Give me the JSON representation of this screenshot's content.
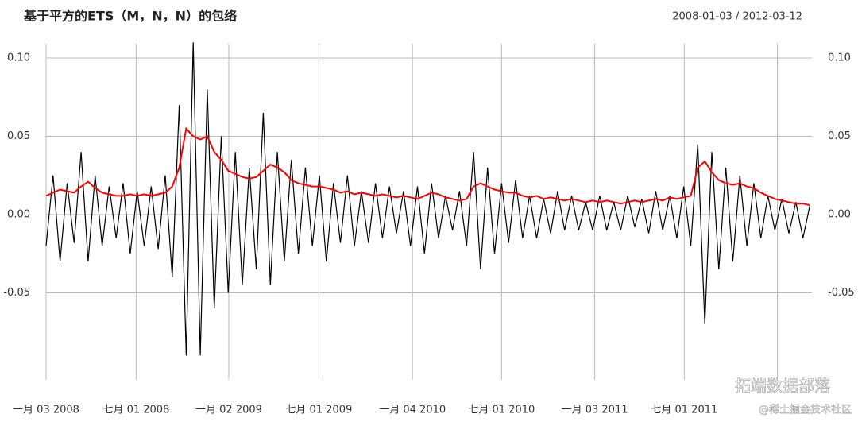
{
  "chart_data": {
    "type": "line",
    "title": "基于平方的ETS（M，N，N）的包络",
    "subtitle": "2008-01-03 / 2012-03-12",
    "x": [
      "2008-01-03",
      "2008-01-17",
      "2008-01-31",
      "2008-02-14",
      "2008-02-28",
      "2008-03-13",
      "2008-03-27",
      "2008-04-10",
      "2008-04-24",
      "2008-05-08",
      "2008-05-22",
      "2008-06-05",
      "2008-06-19",
      "2008-07-03",
      "2008-07-17",
      "2008-07-31",
      "2008-08-14",
      "2008-08-28",
      "2008-09-11",
      "2008-09-25",
      "2008-10-09",
      "2008-10-23",
      "2008-11-06",
      "2008-11-20",
      "2008-12-04",
      "2008-12-18",
      "2009-01-01",
      "2009-01-15",
      "2009-01-29",
      "2009-02-12",
      "2009-02-26",
      "2009-03-12",
      "2009-03-26",
      "2009-04-09",
      "2009-04-23",
      "2009-05-07",
      "2009-05-21",
      "2009-06-04",
      "2009-06-18",
      "2009-07-02",
      "2009-07-16",
      "2009-07-30",
      "2009-08-13",
      "2009-08-27",
      "2009-09-10",
      "2009-09-24",
      "2009-10-08",
      "2009-10-22",
      "2009-11-05",
      "2009-11-19",
      "2009-12-03",
      "2009-12-17",
      "2009-12-31",
      "2010-01-14",
      "2010-01-28",
      "2010-02-11",
      "2010-02-25",
      "2010-03-11",
      "2010-03-25",
      "2010-04-08",
      "2010-04-22",
      "2010-05-06",
      "2010-05-20",
      "2010-06-03",
      "2010-06-17",
      "2010-07-01",
      "2010-07-15",
      "2010-07-29",
      "2010-08-12",
      "2010-08-26",
      "2010-09-09",
      "2010-09-23",
      "2010-10-07",
      "2010-10-21",
      "2010-11-04",
      "2010-11-18",
      "2010-12-02",
      "2010-12-16",
      "2010-12-30",
      "2011-01-13",
      "2011-01-27",
      "2011-02-10",
      "2011-02-24",
      "2011-03-10",
      "2011-03-24",
      "2011-04-07",
      "2011-04-21",
      "2011-05-05",
      "2011-05-19",
      "2011-06-02",
      "2011-06-16",
      "2011-06-30",
      "2011-07-14",
      "2011-07-28",
      "2011-08-11",
      "2011-08-25",
      "2011-09-08",
      "2011-09-22",
      "2011-10-06",
      "2011-10-20",
      "2011-11-03",
      "2011-11-17",
      "2011-12-01",
      "2011-12-15",
      "2011-12-29",
      "2012-01-12",
      "2012-01-26",
      "2012-02-09",
      "2012-02-23",
      "2012-03-08"
    ],
    "series": [
      {
        "color": "#000000",
        "values": [
          -0.02,
          0.025,
          -0.03,
          0.02,
          -0.018,
          0.04,
          -0.03,
          0.025,
          -0.02,
          0.018,
          -0.015,
          0.02,
          -0.025,
          0.015,
          -0.02,
          0.018,
          -0.022,
          0.025,
          -0.04,
          0.07,
          -0.09,
          0.11,
          -0.09,
          0.08,
          -0.06,
          0.05,
          -0.05,
          0.04,
          -0.045,
          0.03,
          -0.035,
          0.065,
          -0.045,
          0.04,
          -0.03,
          0.035,
          -0.025,
          0.03,
          -0.02,
          0.025,
          -0.03,
          0.02,
          -0.018,
          0.025,
          -0.02,
          0.015,
          -0.018,
          0.02,
          -0.015,
          0.018,
          -0.012,
          0.015,
          -0.02,
          0.018,
          -0.025,
          0.02,
          -0.015,
          0.012,
          -0.01,
          0.015,
          -0.02,
          0.04,
          -0.035,
          0.03,
          -0.025,
          0.02,
          -0.018,
          0.022,
          -0.015,
          0.012,
          -0.015,
          0.01,
          -0.012,
          0.015,
          -0.01,
          0.012,
          -0.01,
          0.008,
          -0.01,
          0.012,
          -0.01,
          0.008,
          -0.01,
          0.012,
          -0.008,
          0.01,
          -0.012,
          0.015,
          -0.01,
          0.012,
          -0.015,
          0.018,
          -0.02,
          0.045,
          -0.07,
          0.04,
          -0.035,
          0.03,
          -0.03,
          0.025,
          -0.02,
          0.02,
          -0.015,
          0.012,
          -0.01,
          0.01,
          -0.012,
          0.008,
          -0.015,
          0.006
        ]
      },
      {
        "color": "#ff0000",
        "values": [
          0.012,
          0.014,
          0.016,
          0.015,
          0.014,
          0.018,
          0.021,
          0.017,
          0.014,
          0.013,
          0.012,
          0.012,
          0.013,
          0.012,
          0.013,
          0.012,
          0.013,
          0.014,
          0.018,
          0.03,
          0.055,
          0.05,
          0.048,
          0.05,
          0.04,
          0.035,
          0.028,
          0.026,
          0.024,
          0.023,
          0.024,
          0.028,
          0.032,
          0.03,
          0.027,
          0.022,
          0.02,
          0.019,
          0.018,
          0.018,
          0.017,
          0.016,
          0.014,
          0.015,
          0.013,
          0.014,
          0.013,
          0.012,
          0.013,
          0.012,
          0.011,
          0.012,
          0.011,
          0.01,
          0.012,
          0.014,
          0.013,
          0.011,
          0.01,
          0.009,
          0.01,
          0.018,
          0.02,
          0.018,
          0.016,
          0.015,
          0.014,
          0.014,
          0.012,
          0.011,
          0.012,
          0.01,
          0.011,
          0.01,
          0.009,
          0.01,
          0.009,
          0.008,
          0.009,
          0.008,
          0.009,
          0.008,
          0.007,
          0.008,
          0.009,
          0.008,
          0.009,
          0.01,
          0.009,
          0.011,
          0.01,
          0.011,
          0.012,
          0.03,
          0.034,
          0.027,
          0.022,
          0.02,
          0.019,
          0.02,
          0.018,
          0.017,
          0.014,
          0.012,
          0.01,
          0.009,
          0.008,
          0.007,
          0.007,
          0.006
        ]
      }
    ],
    "xlim": [
      "2008-01-03",
      "2012-03-12"
    ],
    "xticks": [
      {
        "value": "2008-01-03",
        "label": "一月 03 2008"
      },
      {
        "value": "2008-07-01",
        "label": "七月 01 2008"
      },
      {
        "value": "2009-01-02",
        "label": "一月 02 2009"
      },
      {
        "value": "2009-07-01",
        "label": "七月 01 2009"
      },
      {
        "value": "2010-01-04",
        "label": "一月 04 2010"
      },
      {
        "value": "2010-07-01",
        "label": "七月 01 2010"
      },
      {
        "value": "2011-01-03",
        "label": "一月 03 2011"
      },
      {
        "value": "2011-07-01",
        "label": "七月 01 2011"
      },
      {
        "value": "2012-01-03",
        "label": null
      }
    ],
    "ylim": [
      -0.1056,
      0.1117
    ],
    "yticks": [
      {
        "value": 0.1,
        "label": "0.10"
      },
      {
        "value": 0.05,
        "label": "0.05"
      },
      {
        "value": 0,
        "label": "0.00"
      },
      {
        "value": -0.05,
        "label": "-0.05"
      }
    ],
    "grid": true
  },
  "watermarks": [
    "拓端数据部落",
    "@稀土掘金技术社区"
  ]
}
